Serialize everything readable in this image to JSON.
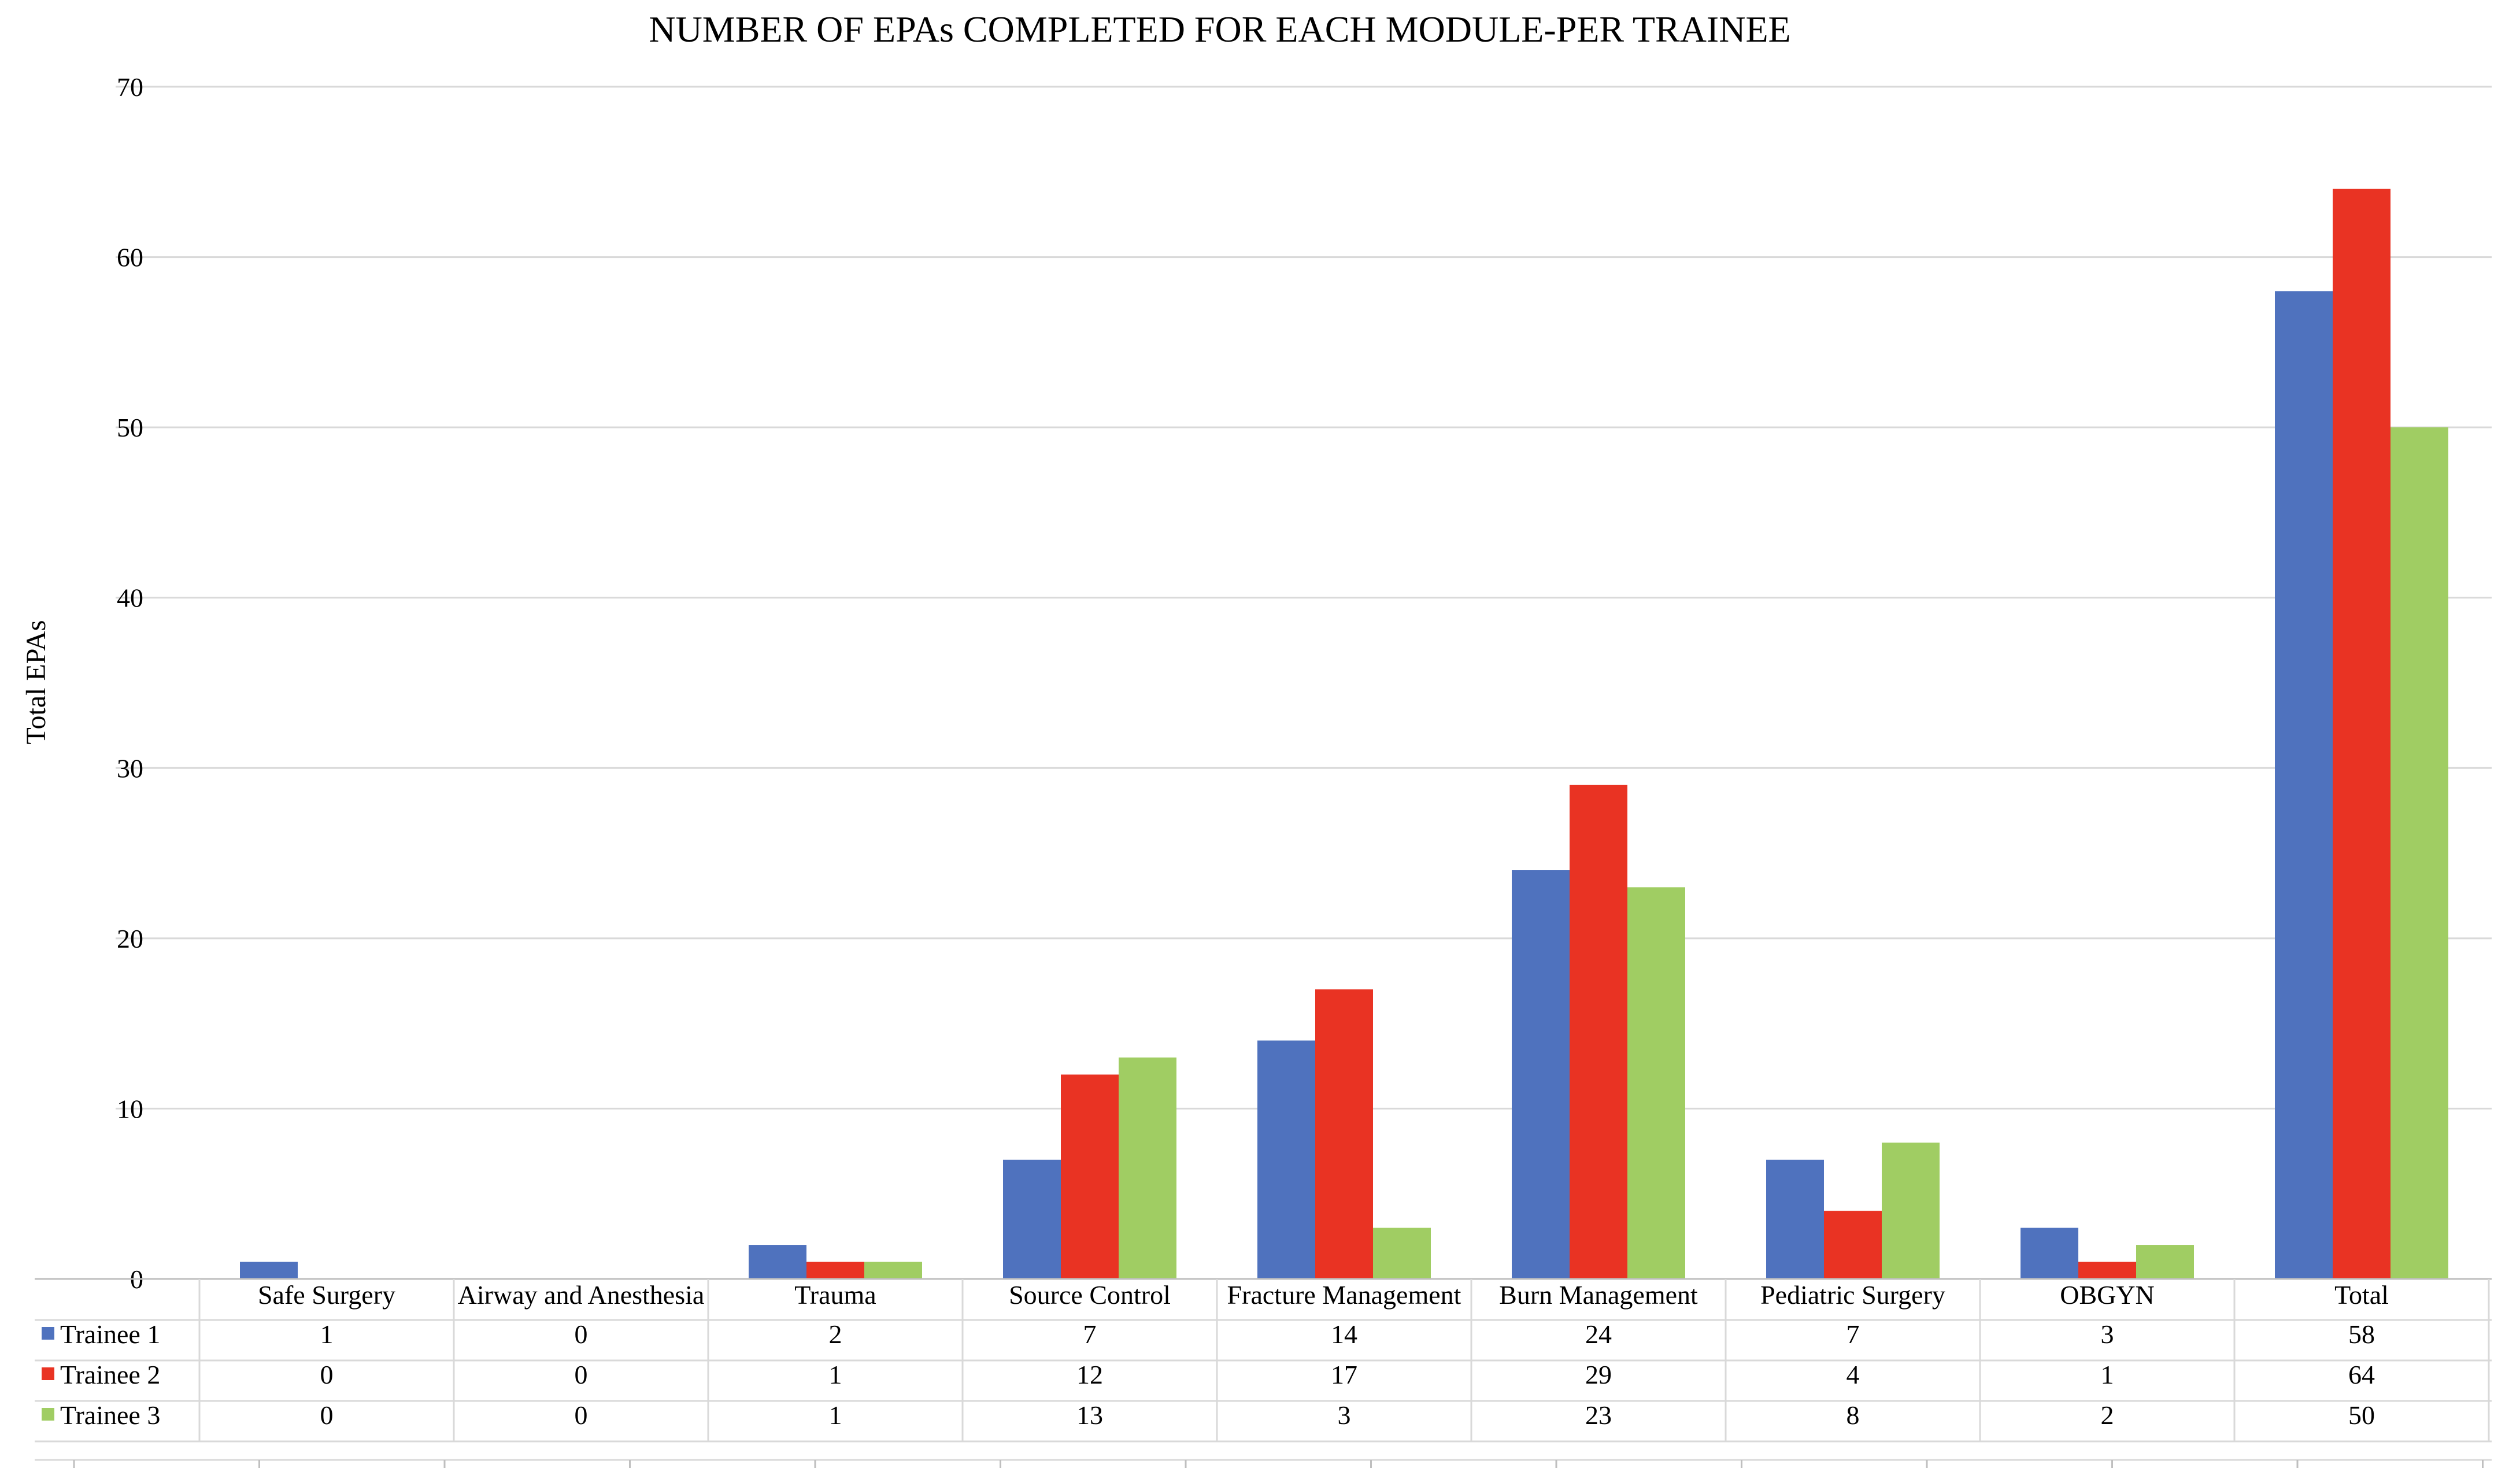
{
  "chart_data": {
    "type": "bar",
    "title": "NUMBER OF EPAs COMPLETED FOR EACH MODULE-PER TRAINEE",
    "xlabel": "",
    "ylabel": "Total EPAs",
    "ylim": [
      0,
      70
    ],
    "yticks": [
      "0",
      "10",
      "20",
      "30",
      "40",
      "50",
      "60",
      "70"
    ],
    "grid": true,
    "legend": "data-table-left",
    "categories": [
      "Safe Surgery",
      "Airway and Anesthesia",
      "Trauma",
      "Source Control",
      "Fracture Management",
      "Burn Management",
      "Pediatric Surgery",
      "OBGYN",
      "Total"
    ],
    "series": [
      {
        "name": "Trainee 1",
        "color": "#4f72be",
        "values": [
          1,
          0,
          2,
          7,
          14,
          24,
          7,
          3,
          58
        ],
        "labels": [
          "1",
          "0",
          "2",
          "7",
          "14",
          "24",
          "7",
          "3",
          "58"
        ]
      },
      {
        "name": "Trainee 2",
        "color": "#e93323",
        "values": [
          0,
          0,
          1,
          12,
          17,
          29,
          4,
          1,
          64
        ],
        "labels": [
          "0",
          "0",
          "1",
          "12",
          "17",
          "29",
          "4",
          "1",
          "64"
        ]
      },
      {
        "name": "Trainee 3",
        "color": "#a0cd63",
        "values": [
          0,
          0,
          1,
          13,
          3,
          23,
          8,
          2,
          50
        ],
        "labels": [
          "0",
          "0",
          "1",
          "13",
          "3",
          "23",
          "8",
          "2",
          "50"
        ]
      }
    ]
  }
}
